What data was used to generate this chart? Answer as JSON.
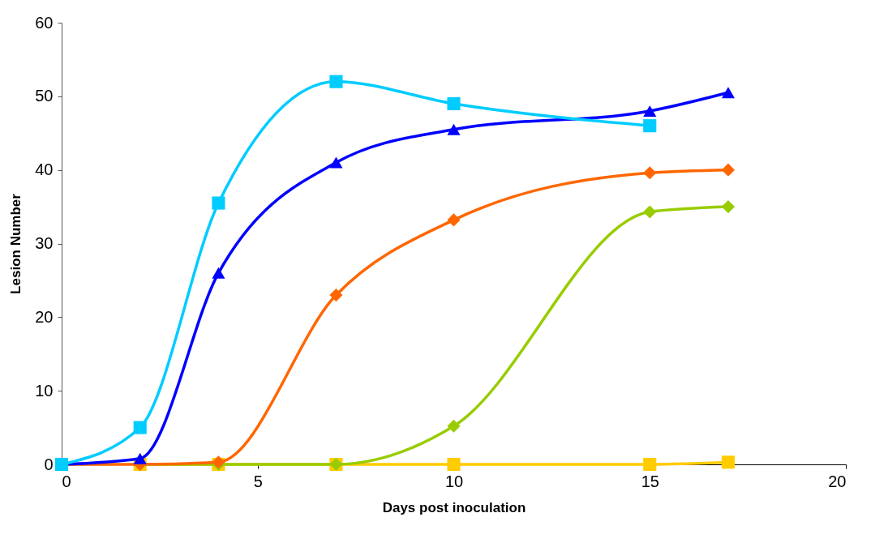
{
  "chart_data": {
    "type": "line",
    "xlabel": "Days post inoculation",
    "ylabel": "Lesion Number",
    "x": [
      0,
      2,
      4,
      7,
      10,
      15,
      17
    ],
    "xlim": [
      0,
      20
    ],
    "xticks": [
      0,
      5,
      10,
      15,
      20
    ],
    "ylim": [
      0,
      60
    ],
    "yticks": [
      0,
      10,
      20,
      30,
      40,
      50,
      60
    ],
    "line_style": "solid",
    "series": [
      {
        "color": "#ffcc00",
        "marker": "square",
        "values": [
          null,
          0,
          0,
          0,
          0,
          0,
          0.3
        ]
      },
      {
        "color": "#99cc00",
        "marker": "diamond",
        "values": [
          null,
          0,
          0,
          0,
          5.2,
          34.3,
          35
        ]
      },
      {
        "color": "#ff6600",
        "marker": "diamond",
        "values": [
          0,
          0,
          0.3,
          23,
          33.2,
          39.6,
          40
        ]
      },
      {
        "color": "#0000ff",
        "marker": "triangle",
        "values": [
          0,
          0.8,
          26,
          41,
          45.5,
          48,
          50.5
        ]
      },
      {
        "color": "#00ccff",
        "marker": "square",
        "values": [
          0,
          5,
          35.5,
          52,
          49,
          46,
          null
        ]
      }
    ]
  }
}
